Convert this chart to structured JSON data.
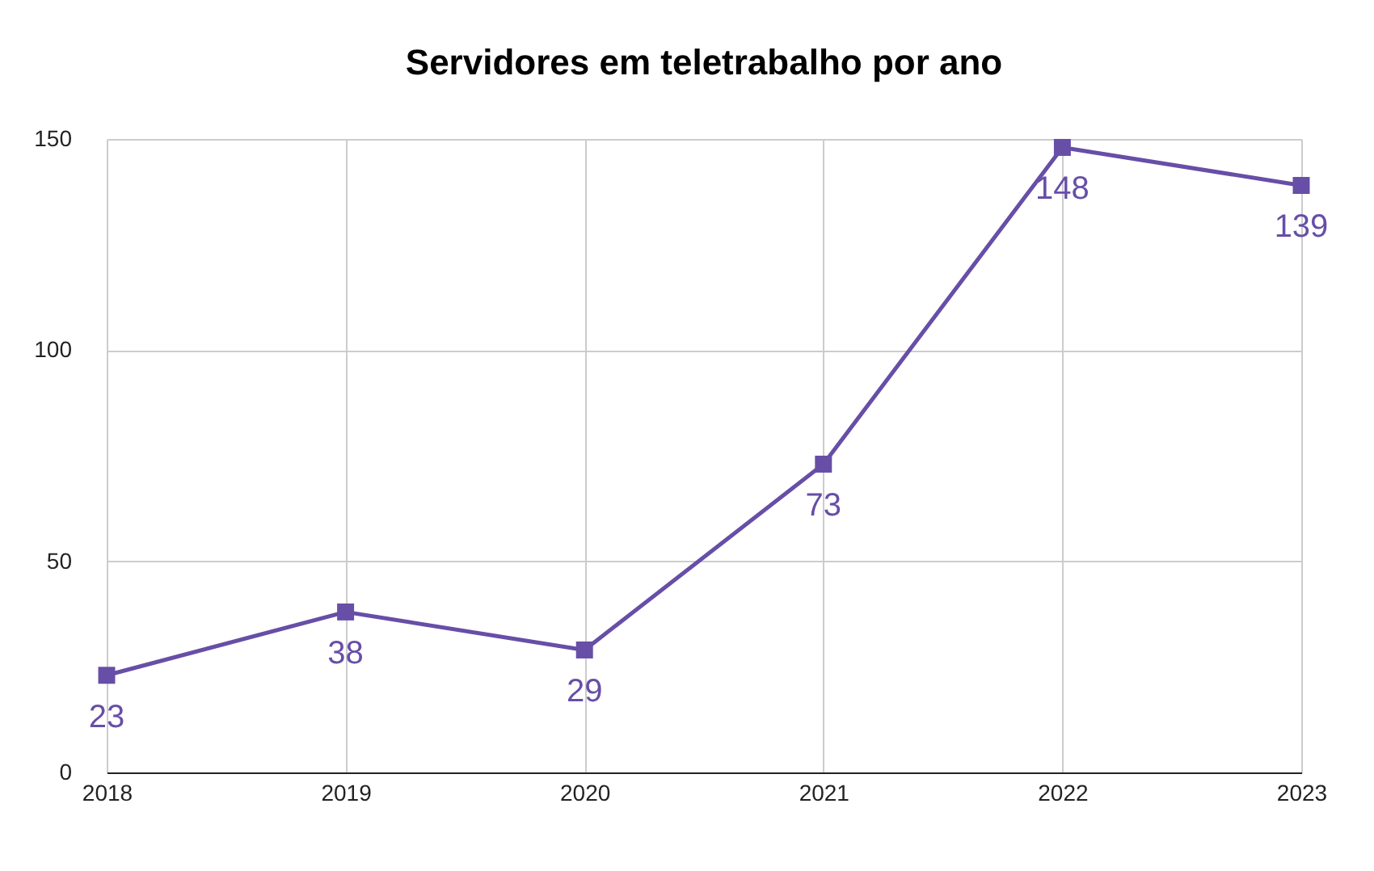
{
  "chart_data": {
    "type": "line",
    "title": "Servidores em teletrabalho por ano",
    "categories": [
      "2018",
      "2019",
      "2020",
      "2021",
      "2022",
      "2023"
    ],
    "series": [
      {
        "color": "#674ea7",
        "values": [
          23,
          38,
          29,
          73,
          148,
          139
        ]
      }
    ],
    "ylim": [
      0,
      150
    ],
    "yticks": [
      0,
      50,
      100,
      150
    ],
    "grid": true,
    "marker": "square",
    "line_style": "solid",
    "data_labels": true
  }
}
